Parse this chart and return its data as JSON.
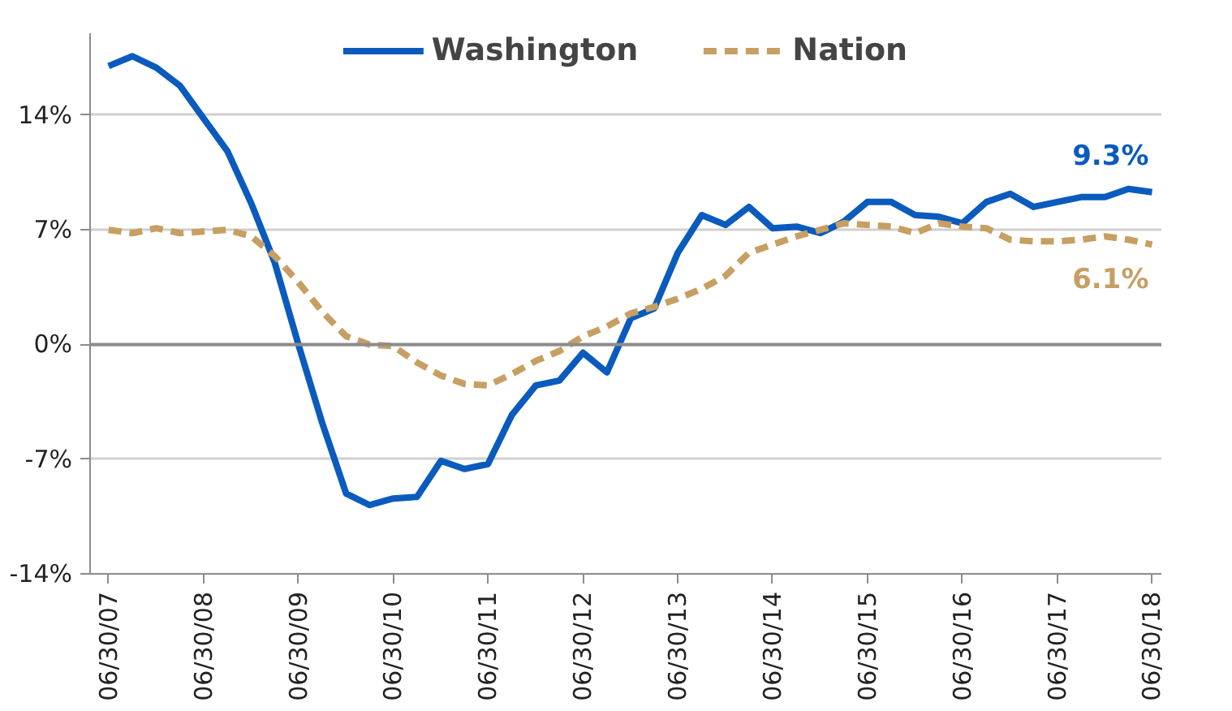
{
  "chart_data": {
    "type": "line",
    "x": [
      "2007-06-30",
      "2007-09-30",
      "2007-12-31",
      "2008-03-31",
      "2008-06-30",
      "2008-09-30",
      "2008-12-31",
      "2009-03-31",
      "2009-06-30",
      "2009-09-30",
      "2009-12-31",
      "2010-03-31",
      "2010-06-30",
      "2010-09-30",
      "2010-12-31",
      "2011-03-31",
      "2011-06-30",
      "2011-09-30",
      "2011-12-31",
      "2012-03-31",
      "2012-06-30",
      "2012-09-30",
      "2012-12-31",
      "2013-03-31",
      "2013-06-30",
      "2013-09-30",
      "2013-12-31",
      "2014-03-31",
      "2014-06-30",
      "2014-09-30",
      "2014-12-31",
      "2015-03-31",
      "2015-06-30",
      "2015-09-30",
      "2015-12-31",
      "2016-03-31",
      "2016-06-30",
      "2016-09-30",
      "2016-12-31",
      "2017-03-31",
      "2017-06-30",
      "2017-09-30",
      "2017-12-31",
      "2018-03-31",
      "2018-06-30"
    ],
    "series": [
      {
        "name": "Washington",
        "color": "#0a5bbd",
        "line_style": "solid",
        "values": [
          17.0,
          17.6,
          16.9,
          15.8,
          13.8,
          11.8,
          8.6,
          5.0,
          0.0,
          -4.8,
          -9.1,
          -9.8,
          -9.4,
          -9.3,
          -7.1,
          -7.6,
          -7.3,
          -4.3,
          -2.5,
          -2.2,
          -0.5,
          -1.7,
          1.6,
          2.2,
          5.6,
          7.9,
          7.3,
          8.4,
          7.1,
          7.2,
          6.8,
          7.5,
          8.7,
          8.7,
          7.9,
          7.8,
          7.4,
          8.7,
          9.2,
          8.4,
          8.7,
          9.0,
          9.0,
          9.5,
          9.3
        ]
      },
      {
        "name": "Nation",
        "color": "#c79f62",
        "line_style": "dashed",
        "values": [
          7.0,
          6.8,
          7.1,
          6.8,
          6.9,
          7.0,
          6.6,
          5.4,
          3.8,
          2.0,
          0.5,
          0.0,
          -0.1,
          -1.1,
          -1.9,
          -2.4,
          -2.5,
          -1.8,
          -1.0,
          -0.4,
          0.5,
          1.1,
          1.9,
          2.3,
          2.8,
          3.4,
          4.2,
          5.6,
          6.1,
          6.6,
          7.0,
          7.4,
          7.3,
          7.2,
          6.8,
          7.4,
          7.2,
          7.1,
          6.4,
          6.3,
          6.3,
          6.4,
          6.6,
          6.4,
          6.1
        ]
      }
    ],
    "ylim": [
      -14,
      19
    ],
    "yticks": [
      {
        "value": -14,
        "label": "-14%"
      },
      {
        "value": -7,
        "label": "-7%"
      },
      {
        "value": 0,
        "label": "0%"
      },
      {
        "value": 7,
        "label": "7%"
      },
      {
        "value": 14,
        "label": "14%"
      }
    ],
    "xlim": [
      "2007-04-20",
      "2018-08-05"
    ],
    "xticks": [
      {
        "value": "2007-06-30",
        "label": "06/30/07"
      },
      {
        "value": "2008-06-30",
        "label": "06/30/08"
      },
      {
        "value": "2009-06-30",
        "label": "06/30/09"
      },
      {
        "value": "2010-06-30",
        "label": "06/30/10"
      },
      {
        "value": "2011-06-30",
        "label": "06/30/11"
      },
      {
        "value": "2012-06-30",
        "label": "06/30/12"
      },
      {
        "value": "2013-06-30",
        "label": "06/30/13"
      },
      {
        "value": "2014-06-30",
        "label": "06/30/14"
      },
      {
        "value": "2015-06-30",
        "label": "06/30/15"
      },
      {
        "value": "2016-06-30",
        "label": "06/30/16"
      },
      {
        "value": "2017-06-30",
        "label": "06/30/17"
      },
      {
        "value": "2018-06-30",
        "label": "06/30/18"
      }
    ],
    "annotations": [
      {
        "text": "9.3%",
        "x": "2018-06-30",
        "y": 9.3
      },
      {
        "text": "6.1%",
        "x": "2018-06-30",
        "y": 6.1
      }
    ],
    "ref_lines": [
      {
        "axis": "y",
        "value": 0,
        "color": "#8c8c8c"
      }
    ],
    "grid": "y",
    "legend": "top",
    "marker": "none"
  }
}
